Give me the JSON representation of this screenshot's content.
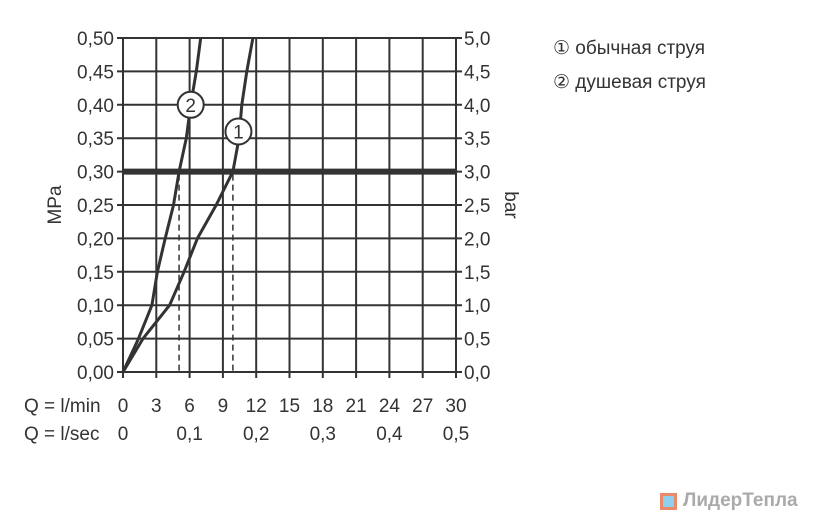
{
  "chart_data": {
    "type": "line",
    "xlabel": "Q = l/min",
    "x2label": "Q = l/sec",
    "ylabel": "MPa",
    "y2label": "bar",
    "xlim": [
      0,
      30
    ],
    "ylim": [
      0,
      0.5
    ],
    "grid": true,
    "x_ticks": [
      "0",
      "3",
      "6",
      "9",
      "12",
      "15",
      "18",
      "21",
      "24",
      "27",
      "30"
    ],
    "x2_ticks": [
      {
        "at": 0,
        "label": "0"
      },
      {
        "at": 6,
        "label": "0,1"
      },
      {
        "at": 12,
        "label": "0,2"
      },
      {
        "at": 18,
        "label": "0,3"
      },
      {
        "at": 24,
        "label": "0,4"
      },
      {
        "at": 30,
        "label": "0,5"
      }
    ],
    "y_ticks": [
      "0,00",
      "0,05",
      "0,10",
      "0,15",
      "0,20",
      "0,25",
      "0,30",
      "0,35",
      "0,40",
      "0,45",
      "0,50"
    ],
    "y2_ticks": [
      "0,0",
      "0,5",
      "1,0",
      "1,5",
      "2,0",
      "2,5",
      "3,0",
      "3,5",
      "4,0",
      "4,5",
      "5,0"
    ],
    "reference_line": {
      "y": 0.3
    },
    "series": [
      {
        "name": "1",
        "marker_at": [
          10.4,
          0.36
        ],
        "dashed_drop_x": 9.9,
        "points": [
          [
            0,
            0
          ],
          [
            1.8,
            0.05
          ],
          [
            4.2,
            0.1
          ],
          [
            5.5,
            0.15
          ],
          [
            6.7,
            0.2
          ],
          [
            8.4,
            0.25
          ],
          [
            9.9,
            0.3
          ],
          [
            10.45,
            0.35
          ],
          [
            10.7,
            0.4
          ],
          [
            11.15,
            0.45
          ],
          [
            11.7,
            0.5
          ]
        ]
      },
      {
        "name": "2",
        "marker_at": [
          6.1,
          0.4
        ],
        "dashed_drop_x": 5.05,
        "points": [
          [
            0,
            0
          ],
          [
            1.4,
            0.05
          ],
          [
            2.6,
            0.1
          ],
          [
            3.1,
            0.15
          ],
          [
            3.8,
            0.2
          ],
          [
            4.55,
            0.25
          ],
          [
            5.05,
            0.3
          ],
          [
            5.7,
            0.35
          ],
          [
            6.1,
            0.4
          ],
          [
            6.6,
            0.45
          ],
          [
            7.0,
            0.5
          ]
        ]
      }
    ],
    "legend": [
      "① обычная струя",
      "② душевая струя"
    ],
    "legend_position": "top-right",
    "color": "#333333"
  },
  "watermark": "ЛидерТепла"
}
